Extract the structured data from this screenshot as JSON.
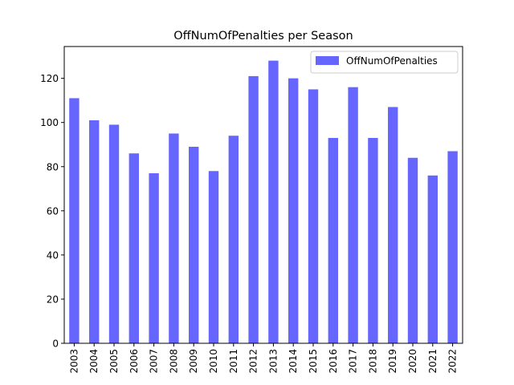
{
  "chart_data": {
    "type": "bar",
    "title": "OffNumOfPenalties per Season",
    "xlabel": "",
    "ylabel": "",
    "categories": [
      "2003",
      "2004",
      "2005",
      "2006",
      "2007",
      "2008",
      "2009",
      "2010",
      "2011",
      "2012",
      "2013",
      "2014",
      "2015",
      "2016",
      "2017",
      "2018",
      "2019",
      "2020",
      "2021",
      "2022"
    ],
    "series": [
      {
        "name": "OffNumOfPenalties",
        "color": "#6666ff",
        "values": [
          111,
          101,
          99,
          86,
          77,
          95,
          89,
          78,
          94,
          121,
          128,
          120,
          115,
          93,
          116,
          93,
          107,
          84,
          76,
          87
        ]
      }
    ],
    "ylim": [
      0,
      134.4
    ],
    "yticks": [
      0,
      20,
      40,
      60,
      80,
      100,
      120
    ],
    "grid": false,
    "legend_position": "top-right"
  }
}
